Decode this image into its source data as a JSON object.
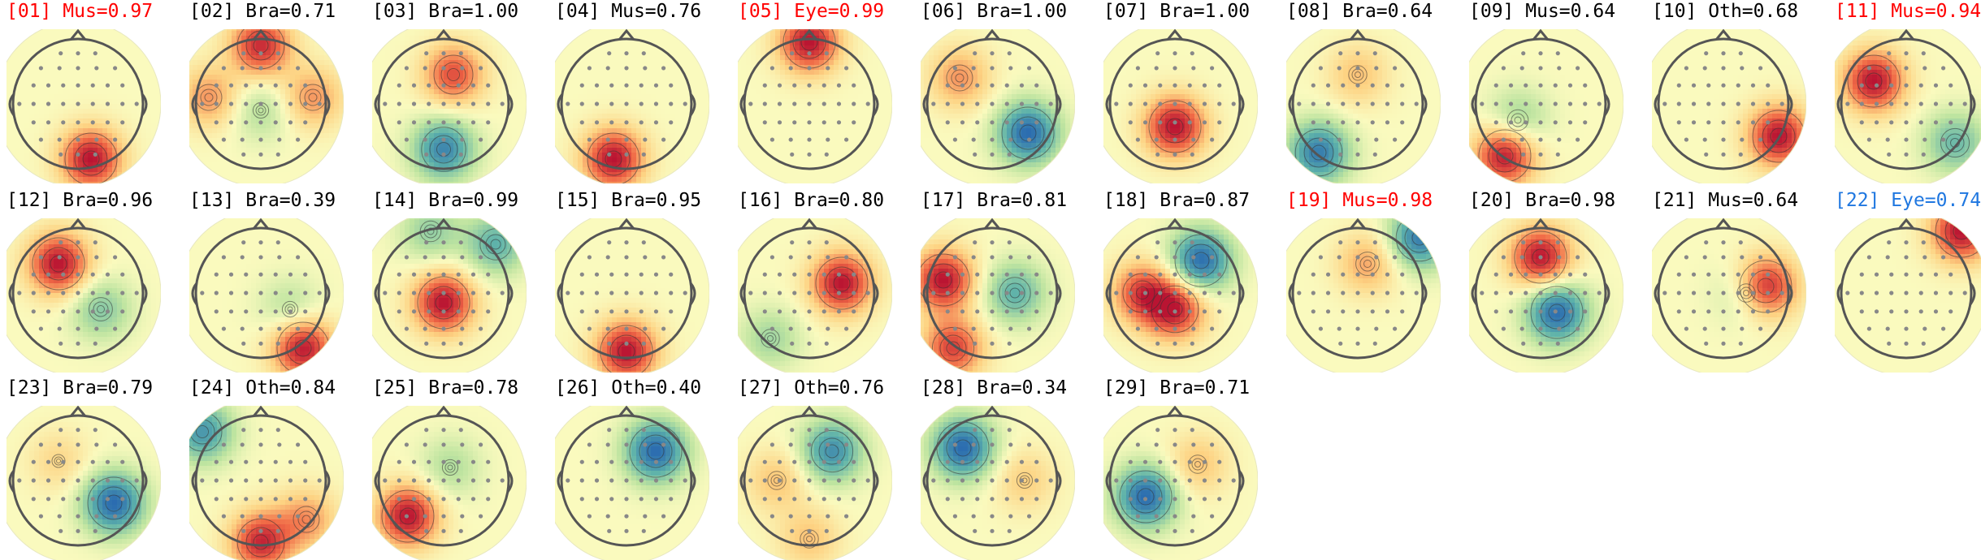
{
  "colors": {
    "normal": "#000000",
    "muscle_flag": "#ff0000",
    "eye_flag": "#1f77e0"
  },
  "chart_data": {
    "type": "topomap-grid",
    "title": "",
    "grid": {
      "rows": 3,
      "columns": 11
    },
    "components": [
      {
        "label": "[01]",
        "cls": "Mus",
        "score": "0.97",
        "flag": "muscle_flag",
        "pos": [
          {
            "x": 0.2,
            "y": -0.85,
            "v": 1.0
          }
        ],
        "neg": []
      },
      {
        "label": "[02]",
        "cls": "Bra",
        "score": "0.71",
        "flag": "normal",
        "pos": [
          {
            "x": 0.0,
            "y": 0.9,
            "v": 0.9
          },
          {
            "x": -0.8,
            "y": 0.1,
            "v": 0.5
          },
          {
            "x": 0.8,
            "y": 0.1,
            "v": 0.5
          }
        ],
        "neg": [
          {
            "x": 0.0,
            "y": -0.1,
            "v": 0.3
          }
        ]
      },
      {
        "label": "[03]",
        "cls": "Bra",
        "score": "1.00",
        "flag": "normal",
        "pos": [
          {
            "x": 0.15,
            "y": 0.45,
            "v": 0.75
          }
        ],
        "neg": [
          {
            "x": 0.0,
            "y": -0.7,
            "v": 0.85
          }
        ]
      },
      {
        "label": "[04]",
        "cls": "Mus",
        "score": "0.76",
        "flag": "normal",
        "pos": [
          {
            "x": -0.2,
            "y": -0.85,
            "v": 1.0
          }
        ],
        "neg": []
      },
      {
        "label": "[05]",
        "cls": "Eye",
        "score": "0.99",
        "flag": "eye_flag_red",
        "pos": [
          {
            "x": 0.0,
            "y": 0.95,
            "v": 1.0
          }
        ],
        "neg": []
      },
      {
        "label": "[06]",
        "cls": "Bra",
        "score": "1.00",
        "flag": "normal",
        "pos": [
          {
            "x": -0.5,
            "y": 0.4,
            "v": 0.5
          }
        ],
        "neg": [
          {
            "x": 0.55,
            "y": -0.45,
            "v": 1.0
          }
        ]
      },
      {
        "label": "[07]",
        "cls": "Bra",
        "score": "1.00",
        "flag": "normal",
        "pos": [
          {
            "x": 0.0,
            "y": -0.35,
            "v": 1.0
          }
        ],
        "neg": []
      },
      {
        "label": "[08]",
        "cls": "Bra",
        "score": "0.64",
        "flag": "normal",
        "pos": [
          {
            "x": 0.0,
            "y": 0.45,
            "v": 0.35
          }
        ],
        "neg": [
          {
            "x": -0.6,
            "y": -0.75,
            "v": 0.9
          }
        ]
      },
      {
        "label": "[09]",
        "cls": "Mus",
        "score": "0.64",
        "flag": "normal",
        "pos": [
          {
            "x": -0.55,
            "y": -0.8,
            "v": 1.0
          }
        ],
        "neg": [
          {
            "x": -0.35,
            "y": -0.25,
            "v": 0.4
          }
        ]
      },
      {
        "label": "[10]",
        "cls": "Oth",
        "score": "0.68",
        "flag": "normal",
        "pos": [
          {
            "x": 0.85,
            "y": -0.5,
            "v": 1.0
          }
        ],
        "neg": []
      },
      {
        "label": "[11]",
        "cls": "Mus",
        "score": "0.94",
        "flag": "muscle_flag",
        "pos": [
          {
            "x": -0.5,
            "y": 0.35,
            "v": 1.0
          }
        ],
        "neg": [
          {
            "x": 0.75,
            "y": -0.6,
            "v": 0.55
          }
        ]
      },
      {
        "label": "[12]",
        "cls": "Bra",
        "score": "0.96",
        "flag": "normal",
        "pos": [
          {
            "x": -0.3,
            "y": 0.45,
            "v": 1.0
          }
        ],
        "neg": [
          {
            "x": 0.35,
            "y": -0.25,
            "v": 0.45
          }
        ]
      },
      {
        "label": "[13]",
        "cls": "Bra",
        "score": "0.39",
        "flag": "normal",
        "pos": [
          {
            "x": 0.65,
            "y": -0.85,
            "v": 1.0
          }
        ],
        "neg": [
          {
            "x": 0.45,
            "y": -0.25,
            "v": 0.3
          }
        ]
      },
      {
        "label": "[14]",
        "cls": "Bra",
        "score": "0.99",
        "flag": "normal",
        "pos": [
          {
            "x": 0.0,
            "y": -0.15,
            "v": 1.0
          }
        ],
        "neg": [
          {
            "x": 0.8,
            "y": 0.75,
            "v": 0.6
          },
          {
            "x": -0.2,
            "y": 0.95,
            "v": 0.4
          }
        ]
      },
      {
        "label": "[15]",
        "cls": "Bra",
        "score": "0.95",
        "flag": "normal",
        "pos": [
          {
            "x": 0.0,
            "y": -0.9,
            "v": 1.0
          }
        ],
        "neg": []
      },
      {
        "label": "[16]",
        "cls": "Bra",
        "score": "0.80",
        "flag": "normal",
        "pos": [
          {
            "x": 0.5,
            "y": 0.15,
            "v": 1.0
          }
        ],
        "neg": [
          {
            "x": -0.6,
            "y": -0.7,
            "v": 0.35
          }
        ]
      },
      {
        "label": "[17]",
        "cls": "Bra",
        "score": "0.81",
        "flag": "normal",
        "pos": [
          {
            "x": -0.75,
            "y": 0.2,
            "v": 1.0
          },
          {
            "x": -0.6,
            "y": -0.85,
            "v": 0.8
          }
        ],
        "neg": [
          {
            "x": 0.35,
            "y": 0.0,
            "v": 0.6
          }
        ]
      },
      {
        "label": "[18]",
        "cls": "Bra",
        "score": "0.87",
        "flag": "normal",
        "pos": [
          {
            "x": -0.5,
            "y": 0.0,
            "v": 0.75
          },
          {
            "x": 0.0,
            "y": -0.25,
            "v": 0.9
          }
        ],
        "neg": [
          {
            "x": 0.4,
            "y": 0.5,
            "v": 1.0
          }
        ]
      },
      {
        "label": "[19]",
        "cls": "Mus",
        "score": "0.98",
        "flag": "muscle_flag",
        "pos": [
          {
            "x": 0.15,
            "y": 0.45,
            "v": 0.45
          }
        ],
        "neg": [
          {
            "x": 0.95,
            "y": 0.85,
            "v": 0.9
          }
        ]
      },
      {
        "label": "[20]",
        "cls": "Bra",
        "score": "0.98",
        "flag": "normal",
        "pos": [
          {
            "x": 0.0,
            "y": 0.55,
            "v": 1.0
          }
        ],
        "neg": [
          {
            "x": 0.25,
            "y": -0.3,
            "v": 1.0
          }
        ]
      },
      {
        "label": "[21]",
        "cls": "Mus",
        "score": "0.64",
        "flag": "normal",
        "pos": [
          {
            "x": 0.65,
            "y": 0.1,
            "v": 1.0
          }
        ],
        "neg": [
          {
            "x": 0.35,
            "y": 0.0,
            "v": 0.35
          }
        ]
      },
      {
        "label": "[22]",
        "cls": "Eye",
        "score": "0.74",
        "flag": "eye_flag",
        "pos": [
          {
            "x": 0.85,
            "y": 0.95,
            "v": 1.0
          }
        ],
        "neg": []
      },
      {
        "label": "[23]",
        "cls": "Bra",
        "score": "0.79",
        "flag": "normal",
        "pos": [
          {
            "x": -0.3,
            "y": 0.3,
            "v": 0.25
          }
        ],
        "neg": [
          {
            "x": 0.55,
            "y": -0.35,
            "v": 1.0
          }
        ]
      },
      {
        "label": "[24]",
        "cls": "Oth",
        "score": "0.84",
        "flag": "normal",
        "pos": [
          {
            "x": 0.0,
            "y": -0.95,
            "v": 0.9
          },
          {
            "x": 0.7,
            "y": -0.6,
            "v": 0.5
          }
        ],
        "neg": [
          {
            "x": -0.9,
            "y": 0.75,
            "v": 0.75
          }
        ]
      },
      {
        "label": "[25]",
        "cls": "Bra",
        "score": "0.78",
        "flag": "normal",
        "pos": [
          {
            "x": -0.55,
            "y": -0.55,
            "v": 1.0
          }
        ],
        "neg": [
          {
            "x": 0.1,
            "y": 0.2,
            "v": 0.3
          }
        ]
      },
      {
        "label": "[26]",
        "cls": "Oth",
        "score": "0.40",
        "flag": "normal",
        "pos": [],
        "neg": [
          {
            "x": 0.45,
            "y": 0.45,
            "v": 1.0
          }
        ]
      },
      {
        "label": "[27]",
        "cls": "Oth",
        "score": "0.76",
        "flag": "normal",
        "pos": [
          {
            "x": -0.5,
            "y": 0.0,
            "v": 0.35
          },
          {
            "x": 0.0,
            "y": -0.9,
            "v": 0.35
          }
        ],
        "neg": [
          {
            "x": 0.35,
            "y": 0.45,
            "v": 0.8
          }
        ]
      },
      {
        "label": "[28]",
        "cls": "Bra",
        "score": "0.34",
        "flag": "normal",
        "pos": [
          {
            "x": 0.5,
            "y": 0.0,
            "v": 0.3
          }
        ],
        "neg": [
          {
            "x": -0.45,
            "y": 0.5,
            "v": 1.0
          }
        ]
      },
      {
        "label": "[29]",
        "cls": "Bra",
        "score": "0.71",
        "flag": "normal",
        "pos": [
          {
            "x": 0.35,
            "y": 0.25,
            "v": 0.35
          }
        ],
        "neg": [
          {
            "x": -0.45,
            "y": -0.25,
            "v": 1.0
          }
        ]
      }
    ]
  }
}
